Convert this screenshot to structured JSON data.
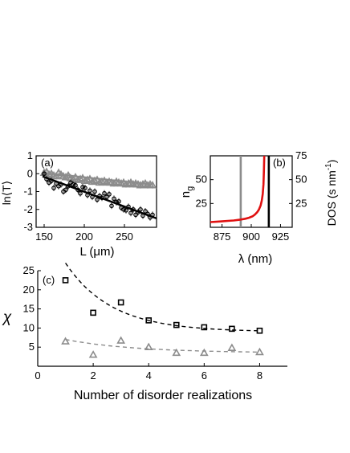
{
  "chart_data": [
    {
      "type": "scatter",
      "panel_label": "(a)",
      "xlabel_main": "L (",
      "xlabel_unit": "μm",
      "xlabel_close": ")",
      "ylabel": "ln⟨T⟩",
      "xlim": [
        140,
        290
      ],
      "ylim": [
        -3,
        1
      ],
      "xticks": [
        150,
        200,
        250
      ],
      "yticks": [
        1,
        0,
        -1,
        -2,
        -3
      ],
      "series": [
        {
          "color": "#8c8c8c",
          "marker": "triangle",
          "x": [
            150,
            153,
            156,
            159,
            162,
            165,
            168,
            171,
            174,
            177,
            180,
            183,
            186,
            189,
            192,
            195,
            198,
            201,
            204,
            207,
            210,
            213,
            216,
            219,
            222,
            225,
            228,
            231,
            234,
            237,
            240,
            243,
            246,
            249,
            252,
            255,
            258,
            261,
            264,
            267,
            270,
            273,
            276,
            279,
            282,
            285
          ],
          "y": [
            0.05,
            0.1,
            -0.05,
            0.0,
            -0.1,
            -0.15,
            0.05,
            -0.05,
            -0.15,
            -0.2,
            -0.1,
            -0.25,
            -0.3,
            -0.2,
            -0.35,
            -0.3,
            -0.25,
            -0.4,
            -0.35,
            -0.3,
            -0.45,
            -0.4,
            -0.35,
            -0.5,
            -0.45,
            -0.4,
            -0.5,
            -0.45,
            -0.5,
            -0.55,
            -0.45,
            -0.5,
            -0.55,
            -0.5,
            -0.6,
            -0.55,
            -0.5,
            -0.6,
            -0.55,
            -0.6,
            -0.65,
            -0.6,
            -0.55,
            -0.65,
            -0.6,
            -0.65
          ],
          "fit": {
            "x": [
              148,
              285
            ],
            "y": [
              0.05,
              -0.6
            ]
          }
        },
        {
          "color": "#000000",
          "marker": "circle",
          "x": [
            150,
            153,
            156,
            159,
            162,
            165,
            168,
            171,
            174,
            177,
            180,
            183,
            186,
            189,
            192,
            195,
            198,
            201,
            204,
            207,
            210,
            213,
            216,
            219,
            222,
            225,
            228,
            231,
            234,
            237,
            240,
            243,
            246,
            249,
            252,
            255,
            258,
            261,
            264,
            267,
            270,
            273,
            276,
            279,
            282,
            285
          ],
          "y": [
            0.0,
            -0.3,
            -0.5,
            -0.4,
            -0.8,
            -0.55,
            -0.7,
            -0.6,
            -1.0,
            -0.9,
            -0.7,
            -0.5,
            -0.6,
            -0.65,
            -0.9,
            -1.1,
            -0.75,
            -0.8,
            -1.2,
            -0.95,
            -1.3,
            -1.0,
            -1.45,
            -1.25,
            -1.35,
            -1.1,
            -1.3,
            -1.15,
            -1.8,
            -1.4,
            -1.6,
            -1.55,
            -1.9,
            -2.0,
            -2.05,
            -1.85,
            -2.2,
            -2.0,
            -2.3,
            -2.15,
            -2.0,
            -2.35,
            -2.1,
            -2.25,
            -2.45,
            -2.3
          ],
          "fit": {
            "x": [
              148,
              290
            ],
            "y": [
              -0.15,
              -2.5
            ]
          }
        }
      ]
    },
    {
      "type": "line",
      "panel_label": "(b)",
      "xlabel": "λ (nm)",
      "ylabel_left_main": "n",
      "ylabel_left_sub": "g",
      "ylabel_right_main": "DOS (s nm",
      "ylabel_right_sup": "-1",
      "ylabel_right_close": ")",
      "xlim": [
        865,
        935
      ],
      "ylim_left": [
        0,
        75
      ],
      "ylim_right": [
        0,
        75
      ],
      "xticks": [
        875,
        900,
        925
      ],
      "yticks_left": [
        25,
        50
      ],
      "yticks_right": [
        25,
        50,
        75
      ],
      "series": [
        {
          "color": "#e01010",
          "x": [
            865,
            870,
            875,
            880,
            885,
            890,
            895,
            898,
            901,
            903,
            905,
            906.5,
            908,
            909,
            909.8,
            910.4,
            910.8,
            911.1
          ],
          "y": [
            5.5,
            5.8,
            6.2,
            6.7,
            7.2,
            7.9,
            9.0,
            10.0,
            11.5,
            13.2,
            15.8,
            18.5,
            23.0,
            28.0,
            35.0,
            45.0,
            58.0,
            75.0
          ]
        }
      ],
      "vlines": [
        {
          "x": 891,
          "color": "#8c8c8c"
        },
        {
          "x": 915,
          "color": "#000000"
        }
      ]
    },
    {
      "type": "scatter",
      "panel_label": "(c)",
      "xlabel": "Number of disorder realizations",
      "ylabel": "χ",
      "xlim": [
        0,
        9
      ],
      "ylim": [
        0,
        25
      ],
      "xticks": [
        0,
        2,
        4,
        6,
        8
      ],
      "yticks": [
        5,
        10,
        15,
        20,
        25
      ],
      "series": [
        {
          "color": "#000000",
          "marker": "square",
          "x": [
            1,
            2,
            3,
            4,
            5,
            6,
            7,
            8
          ],
          "y": [
            22.5,
            14.0,
            16.7,
            12.0,
            10.8,
            10.2,
            9.8,
            9.3
          ],
          "trend_decay": {
            "a": 9.0,
            "b": 18.0,
            "k": 0.6
          }
        },
        {
          "color": "#8c8c8c",
          "marker": "triangle",
          "x": [
            1,
            2,
            3,
            4,
            5,
            6,
            7,
            8
          ],
          "y": [
            6.5,
            3.0,
            6.7,
            5.0,
            3.5,
            3.5,
            4.8,
            3.7
          ],
          "trend_decay": {
            "a": 3.5,
            "b": 3.5,
            "k": 0.4
          }
        }
      ]
    }
  ]
}
